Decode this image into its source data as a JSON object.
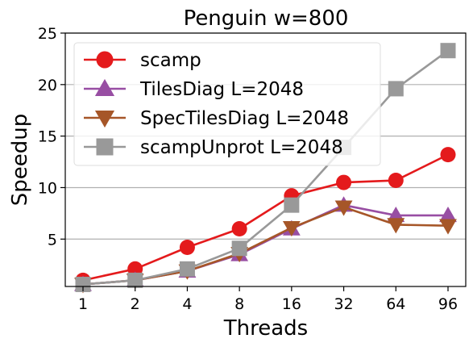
{
  "chart_data": {
    "type": "line",
    "title": "Penguin w=800",
    "xlabel": "Threads",
    "ylabel": "Speedup",
    "categories": [
      "1",
      "2",
      "4",
      "8",
      "16",
      "32",
      "64",
      "96"
    ],
    "ylim": [
      0.4,
      25
    ],
    "yticks": [
      5,
      10,
      15,
      20,
      25
    ],
    "grid": "y",
    "legend_position": "upper-left",
    "series": [
      {
        "name": "scamp",
        "color": "#e41a1c",
        "marker": "circle",
        "values": [
          1.0,
          2.1,
          4.2,
          6.0,
          9.2,
          10.5,
          10.7,
          13.2
        ]
      },
      {
        "name": "TilesDiag L=2048",
        "color": "#984ea3",
        "marker": "triangle-up",
        "values": [
          0.6,
          1.0,
          1.9,
          3.5,
          6.0,
          8.3,
          7.3,
          7.3
        ]
      },
      {
        "name": "SpecTilesDiag L=2048",
        "color": "#a65628",
        "marker": "triangle-down",
        "values": [
          0.6,
          1.0,
          1.9,
          3.6,
          6.1,
          8.1,
          6.4,
          6.3
        ]
      },
      {
        "name": "scampUnprot L=2048",
        "color": "#999999",
        "marker": "square",
        "values": [
          0.6,
          1.0,
          2.1,
          4.1,
          8.3,
          13.9,
          19.6,
          23.3
        ]
      }
    ]
  }
}
